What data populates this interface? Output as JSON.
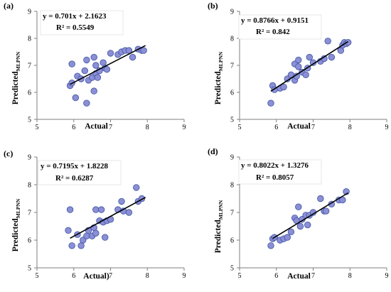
{
  "chart_data": [
    {
      "type": "scatter",
      "panel": "(a)",
      "xlabel": "Actual",
      "ylabel": "Predicted",
      "ylabel_sub": "MLPNN",
      "xlim": [
        5,
        9
      ],
      "ylim": [
        5,
        9
      ],
      "xticks": [
        5,
        6,
        7,
        8,
        9
      ],
      "yticks": [
        5,
        6,
        7,
        8,
        9
      ],
      "equation": "y = 0.701x + 2.1623",
      "r2": "R² = 0.5549",
      "trendline": {
        "slope": 0.701,
        "intercept": 2.1623,
        "x_range": [
          5.9,
          7.95
        ]
      },
      "x": [
        5.9,
        5.95,
        5.95,
        6.05,
        6.1,
        6.2,
        6.3,
        6.35,
        6.35,
        6.4,
        6.5,
        6.55,
        6.55,
        6.6,
        6.6,
        6.65,
        6.7,
        6.8,
        6.85,
        6.9,
        7.0,
        7.2,
        7.3,
        7.4,
        7.5,
        7.6,
        7.75,
        7.85,
        7.9
      ],
      "y": [
        6.25,
        7.05,
        6.35,
        5.8,
        6.6,
        6.5,
        6.8,
        5.6,
        7.2,
        6.45,
        6.55,
        6.05,
        7.3,
        7.0,
        6.7,
        6.55,
        6.8,
        7.1,
        6.9,
        6.85,
        7.45,
        7.4,
        7.5,
        7.55,
        7.55,
        7.3,
        7.6,
        7.55,
        7.55
      ]
    },
    {
      "type": "scatter",
      "panel": "(b)",
      "xlabel": "Actual",
      "ylabel": "Predicted",
      "ylabel_sub": "MLPNN",
      "xlim": [
        5,
        9
      ],
      "ylim": [
        5,
        9
      ],
      "xticks": [
        5,
        6,
        7,
        8,
        9
      ],
      "yticks": [
        5,
        6,
        7,
        8,
        9
      ],
      "equation": "y = 0.8766x + 0.9151",
      "r2": "R² = 0.842",
      "trendline": {
        "slope": 0.8766,
        "intercept": 0.9151,
        "x_range": [
          5.85,
          7.95
        ]
      },
      "x": [
        5.85,
        5.9,
        5.95,
        6.1,
        6.2,
        6.3,
        6.4,
        6.5,
        6.5,
        6.55,
        6.6,
        6.6,
        6.7,
        6.8,
        6.85,
        6.9,
        7.0,
        7.2,
        7.3,
        7.4,
        7.5,
        7.75,
        7.8,
        7.85,
        7.9,
        7.95
      ],
      "y": [
        5.6,
        6.25,
        6.1,
        6.15,
        6.2,
        6.5,
        6.65,
        6.45,
        7.05,
        6.6,
        7.2,
        6.95,
        6.75,
        6.65,
        6.9,
        7.3,
        7.1,
        7.15,
        7.25,
        7.9,
        7.3,
        7.55,
        7.75,
        7.85,
        7.8,
        7.85
      ]
    },
    {
      "type": "scatter",
      "panel": "(c)",
      "xlabel": "Actual)",
      "ylabel": "Predicted",
      "ylabel_sub": "MLPNN",
      "xlim": [
        5,
        9
      ],
      "ylim": [
        5,
        9
      ],
      "xticks": [
        5,
        6,
        7,
        8,
        9
      ],
      "yticks": [
        5,
        6,
        7,
        8,
        9
      ],
      "equation": "y = 0.7195x + 1.8228",
      "r2": "R² = 0.6287",
      "trendline": {
        "slope": 0.7195,
        "intercept": 1.8228,
        "x_range": [
          5.9,
          7.95
        ]
      },
      "x": [
        5.85,
        5.9,
        5.95,
        6.1,
        6.2,
        6.25,
        6.35,
        6.4,
        6.5,
        6.55,
        6.6,
        6.6,
        6.7,
        6.75,
        6.8,
        6.85,
        6.9,
        7.0,
        7.2,
        7.3,
        7.35,
        7.5,
        7.7,
        7.75,
        7.85
      ],
      "y": [
        6.35,
        7.1,
        5.8,
        6.2,
        5.8,
        6.0,
        6.15,
        6.35,
        6.15,
        6.45,
        6.25,
        7.1,
        6.7,
        7.1,
        6.65,
        6.1,
        6.7,
        6.75,
        7.1,
        7.4,
        7.05,
        7.0,
        7.9,
        7.4,
        7.5
      ]
    },
    {
      "type": "scatter",
      "panel": "(d)",
      "xlabel": "Actual",
      "ylabel": "Predicted",
      "ylabel_sub": "MLPNN",
      "xlim": [
        5,
        9
      ],
      "ylim": [
        5,
        9
      ],
      "xticks": [
        5,
        6,
        7,
        8,
        9
      ],
      "yticks": [
        5,
        6,
        7,
        8,
        9
      ],
      "equation": "y = 0.8022x + 1.3276",
      "r2": "R² = 0.8057",
      "trendline": {
        "slope": 0.8022,
        "intercept": 1.3276,
        "x_range": [
          5.9,
          7.95
        ]
      },
      "x": [
        5.85,
        5.9,
        5.95,
        6.1,
        6.2,
        6.3,
        6.4,
        6.5,
        6.55,
        6.6,
        6.65,
        6.7,
        6.8,
        6.85,
        6.9,
        7.0,
        7.2,
        7.3,
        7.35,
        7.5,
        7.7,
        7.8,
        7.9
      ],
      "y": [
        5.8,
        6.05,
        6.1,
        6.0,
        6.05,
        6.1,
        6.3,
        6.8,
        6.7,
        7.2,
        6.5,
        6.75,
        6.9,
        6.55,
        6.9,
        7.0,
        7.5,
        7.05,
        7.05,
        7.3,
        7.45,
        7.45,
        7.75
      ]
    }
  ]
}
